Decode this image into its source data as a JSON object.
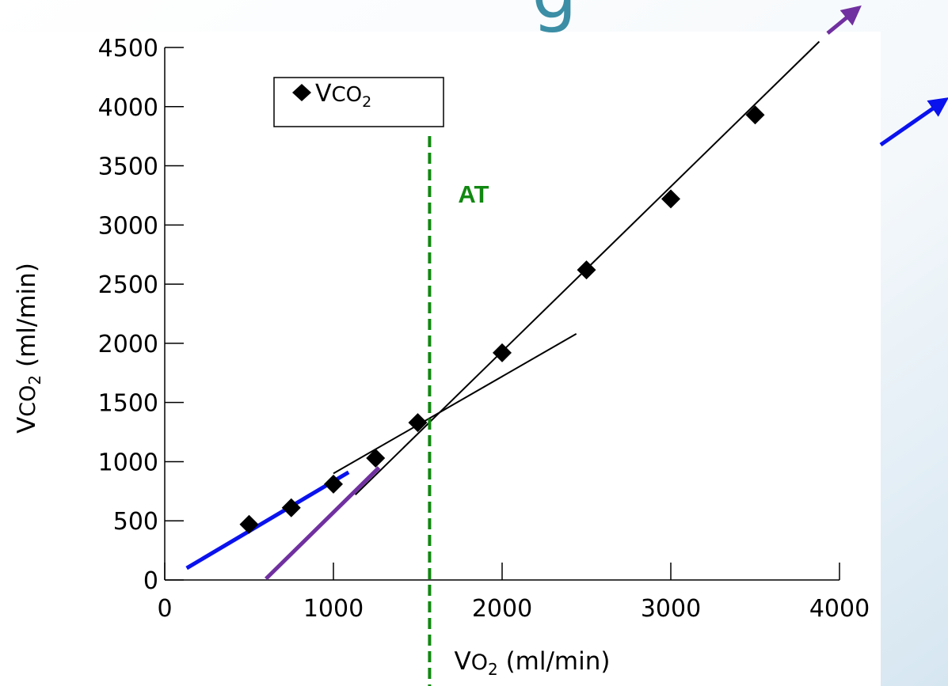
{
  "chart_data": {
    "type": "scatter",
    "title_fragment": "g",
    "xlabel": {
      "main": "V",
      "sub": "O",
      "subscript": "2",
      "units": " (ml/min)"
    },
    "ylabel": {
      "main": "V",
      "sub": "CO",
      "subscript": "2",
      "units": " (ml/min)"
    },
    "xlim": [
      0,
      4000
    ],
    "ylim": [
      0,
      4500
    ],
    "xticks": [
      0,
      1000,
      2000,
      3000,
      4000
    ],
    "yticks": [
      0,
      500,
      1000,
      1500,
      2000,
      2500,
      3000,
      3500,
      4000,
      4500
    ],
    "legend": {
      "position": "top-left",
      "label_main": "V",
      "label_sub": "CO",
      "label_subscript": "2"
    },
    "series": [
      {
        "name": "VCO2",
        "marker": "diamond",
        "color": "#000000",
        "points": [
          {
            "x": 500,
            "y": 470
          },
          {
            "x": 750,
            "y": 610
          },
          {
            "x": 1000,
            "y": 810
          },
          {
            "x": 1250,
            "y": 1030
          },
          {
            "x": 1500,
            "y": 1330
          },
          {
            "x": 2000,
            "y": 1920
          },
          {
            "x": 2500,
            "y": 2620
          },
          {
            "x": 3000,
            "y": 3220
          },
          {
            "x": 3500,
            "y": 3930
          }
        ]
      }
    ],
    "fit_lines": [
      {
        "name": "upper-fit",
        "color": "#000000",
        "x": [
          1130,
          3880
        ],
        "y": [
          720,
          4550
        ]
      },
      {
        "name": "lower-fit",
        "color": "#000000",
        "x": [
          1000,
          2440
        ],
        "y": [
          900,
          2080
        ]
      },
      {
        "name": "blue-slope",
        "color": "#0a12ee",
        "x": [
          130,
          1090
        ],
        "y": [
          100,
          910
        ]
      },
      {
        "name": "purple-slope",
        "color": "#7030a0",
        "x": [
          600,
          1270
        ],
        "y": [
          10,
          950
        ]
      }
    ],
    "threshold": {
      "label": "AT",
      "x": 1570,
      "color": "#118811"
    },
    "arrows": [
      {
        "name": "purple-arrow",
        "color": "#7030a0"
      },
      {
        "name": "blue-arrow",
        "color": "#0a12ee"
      }
    ]
  }
}
